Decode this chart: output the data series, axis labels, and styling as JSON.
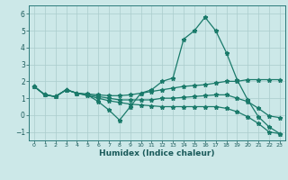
{
  "xlabel": "Humidex (Indice chaleur)",
  "background_color": "#cce8e8",
  "grid_color": "#aacccc",
  "line_color": "#1a7a6a",
  "x_values": [
    0,
    1,
    2,
    3,
    4,
    5,
    6,
    7,
    8,
    9,
    10,
    11,
    12,
    13,
    14,
    15,
    16,
    17,
    18,
    19,
    20,
    21,
    22,
    23
  ],
  "line1": [
    1.7,
    1.2,
    1.1,
    1.5,
    1.3,
    1.2,
    0.8,
    0.3,
    -0.3,
    0.5,
    1.3,
    1.5,
    2.0,
    2.2,
    4.5,
    5.0,
    5.8,
    5.0,
    3.7,
    2.1,
    0.9,
    -0.1,
    -0.7,
    -1.1
  ],
  "line2": [
    1.7,
    1.2,
    1.1,
    1.5,
    1.3,
    1.25,
    1.2,
    1.15,
    1.15,
    1.2,
    1.3,
    1.4,
    1.5,
    1.6,
    1.7,
    1.75,
    1.8,
    1.9,
    2.0,
    2.0,
    2.1,
    2.1,
    2.1,
    2.1
  ],
  "line3": [
    1.7,
    1.2,
    1.1,
    1.5,
    1.3,
    1.2,
    1.1,
    1.0,
    0.9,
    0.9,
    0.9,
    0.9,
    1.0,
    1.0,
    1.05,
    1.1,
    1.15,
    1.2,
    1.2,
    1.0,
    0.8,
    0.4,
    -0.05,
    -0.15
  ],
  "line4": [
    1.7,
    1.2,
    1.1,
    1.5,
    1.3,
    1.15,
    1.0,
    0.85,
    0.75,
    0.65,
    0.6,
    0.55,
    0.5,
    0.5,
    0.5,
    0.5,
    0.5,
    0.5,
    0.4,
    0.2,
    -0.1,
    -0.5,
    -1.0,
    -1.1
  ],
  "ylim": [
    -1.5,
    6.5
  ],
  "xlim": [
    -0.5,
    23.5
  ],
  "yticks": [
    -1,
    0,
    1,
    2,
    3,
    4,
    5,
    6
  ],
  "xticks": [
    0,
    1,
    2,
    3,
    4,
    5,
    6,
    7,
    8,
    9,
    10,
    11,
    12,
    13,
    14,
    15,
    16,
    17,
    18,
    19,
    20,
    21,
    22,
    23
  ]
}
